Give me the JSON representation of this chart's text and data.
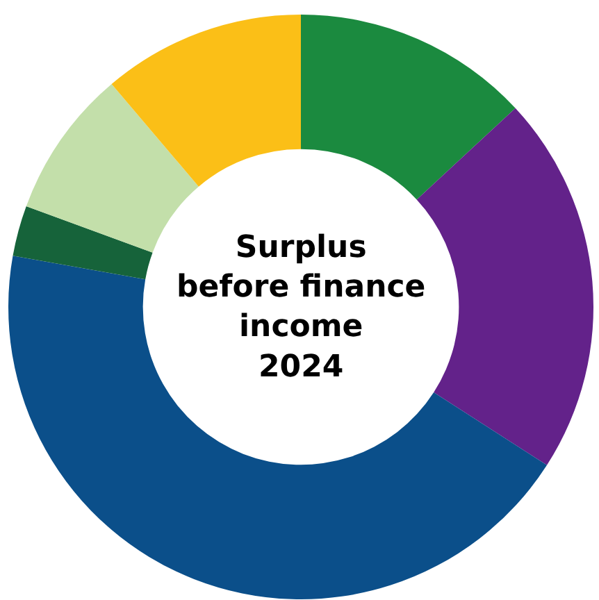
{
  "chart_data": {
    "type": "donut",
    "title": "Surplus\nbefore finance\nincome\n2024",
    "categories": [
      null,
      null,
      null,
      null,
      null,
      null
    ],
    "values": [
      13.1,
      21,
      43.7,
      2.8,
      8.2,
      11.2
    ],
    "colors": [
      "#1b8a3f",
      "#63228a",
      "#0b4f8a",
      "#16633a",
      "#c3dfaa",
      "#fbbf17"
    ],
    "legend": false
  }
}
